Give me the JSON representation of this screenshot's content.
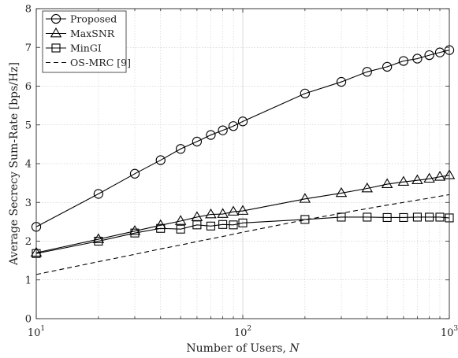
{
  "chart_data": {
    "type": "line",
    "xscale": "log",
    "xlim": [
      10,
      1000
    ],
    "ylim": [
      0,
      8
    ],
    "xlabel": "Number of Users, ",
    "xlabel_var": "N",
    "ylabel": "Average Secrecy Sum-Rate [bps/Hz]",
    "x_ticks": [
      10,
      100,
      1000
    ],
    "x_tick_labels": [
      {
        "base": "10",
        "exp": "1"
      },
      {
        "base": "10",
        "exp": "2"
      },
      {
        "base": "10",
        "exp": "3"
      }
    ],
    "y_ticks": [
      0,
      1,
      2,
      3,
      4,
      5,
      6,
      7,
      8
    ],
    "y_tick_labels": [
      "0",
      "1",
      "2",
      "3",
      "4",
      "5",
      "6",
      "7",
      "8"
    ],
    "grid": true,
    "legend_position": "top-left",
    "x": [
      10,
      20,
      30,
      40,
      50,
      60,
      70,
      80,
      90,
      100,
      200,
      300,
      400,
      500,
      600,
      700,
      800,
      900,
      1000
    ],
    "series": [
      {
        "name": "Proposed",
        "marker": "circle",
        "dash": "solid",
        "values": [
          2.37,
          3.22,
          3.74,
          4.09,
          4.38,
          4.57,
          4.74,
          4.86,
          4.97,
          5.09,
          5.81,
          6.11,
          6.37,
          6.5,
          6.65,
          6.71,
          6.8,
          6.87,
          6.93
        ]
      },
      {
        "name": "MaxSNR",
        "marker": "triangle",
        "dash": "solid",
        "values": [
          1.7,
          2.05,
          2.26,
          2.41,
          2.52,
          2.62,
          2.69,
          2.7,
          2.76,
          2.78,
          3.09,
          3.24,
          3.36,
          3.47,
          3.53,
          3.57,
          3.61,
          3.66,
          3.7
        ]
      },
      {
        "name": "MinGI",
        "marker": "square",
        "dash": "solid",
        "values": [
          1.68,
          2.0,
          2.21,
          2.33,
          2.31,
          2.42,
          2.39,
          2.43,
          2.42,
          2.47,
          2.56,
          2.62,
          2.62,
          2.61,
          2.61,
          2.62,
          2.62,
          2.62,
          2.6
        ]
      },
      {
        "name": "OS-MRC [9]",
        "marker": "none",
        "dash": "dashed",
        "values": [
          1.14,
          1.47,
          1.66,
          1.8,
          1.9,
          1.99,
          2.06,
          2.12,
          2.18,
          2.23,
          2.55,
          2.72,
          2.84,
          2.93,
          3.0,
          3.06,
          3.11,
          3.16,
          3.2
        ]
      }
    ],
    "colors": {
      "line": "#000000",
      "grid": "#bdbdbd",
      "axis": "#262626",
      "background": "#ffffff"
    }
  }
}
